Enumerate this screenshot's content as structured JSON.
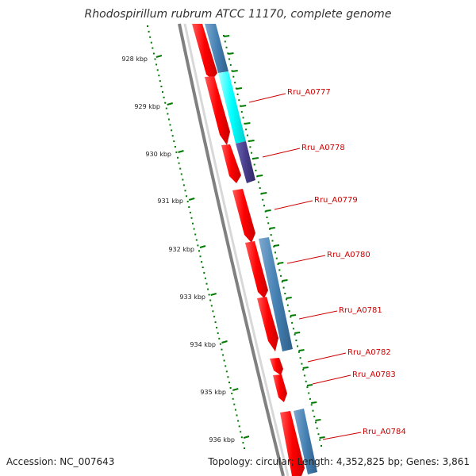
{
  "title": "Rhodospirillum rubrum ATCC 11170, complete genome",
  "accession": "Accession: NC_007643",
  "summary": "Topology: circular; Length: 4,352,825 bp; Genes: 3,861",
  "colors": {
    "forward_gene": "#ff0000",
    "reverse_gene": "#4682b4",
    "highlight_gene": "#00ffff",
    "dark_gene": "#483d8b",
    "backbone": "#808080",
    "tick": "#007a00",
    "label": "#cc0000"
  },
  "ticks": [
    "928 kbp",
    "929 kbp",
    "930 kbp",
    "931 kbp",
    "932 kbp",
    "933 kbp",
    "934 kbp",
    "935 kbp",
    "936 kbp"
  ],
  "gene_labels": [
    "Rru_A0777",
    "Rru_A0778",
    "Rru_A0779",
    "Rru_A0780",
    "Rru_A0781",
    "Rru_A0782",
    "Rru_A0783",
    "Rru_A0784"
  ]
}
